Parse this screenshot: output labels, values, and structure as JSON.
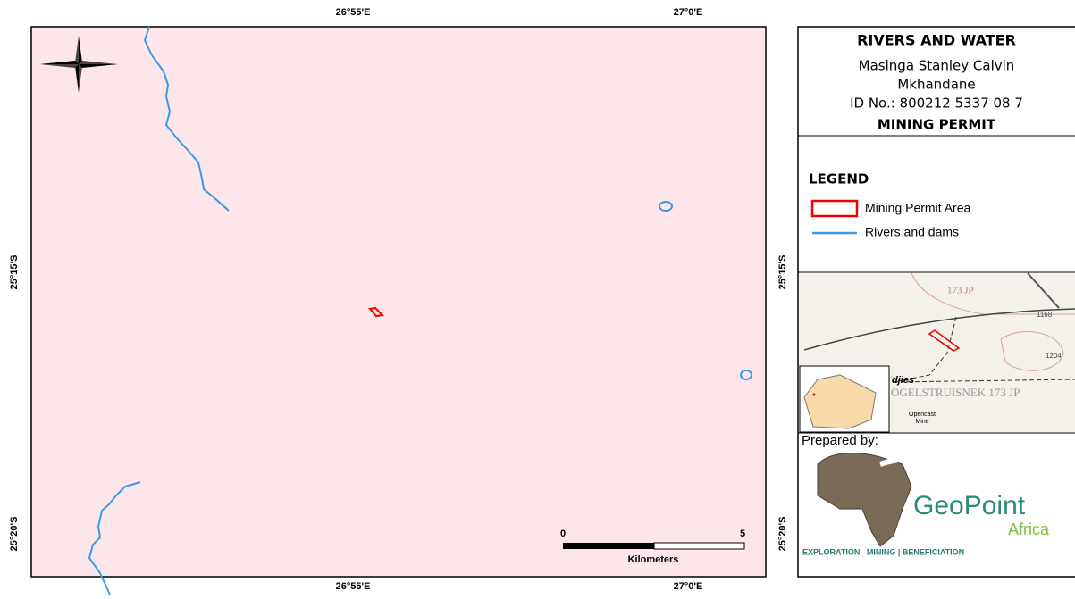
{
  "grid_labels": {
    "top": [
      "26°55'E",
      "27°0'E"
    ],
    "bottom": [
      "26°55'E",
      "27°0'E"
    ],
    "left": [
      "25°15'S",
      "25°20'S"
    ],
    "right": [
      "25°15'S",
      "25°20'S"
    ]
  },
  "title_block": {
    "title": "RIVERS AND WATER",
    "name_line1": "Masinga Stanley Calvin",
    "name_line2": "Mkhandane",
    "id": "ID No.: 800212 5337 08 7",
    "subtitle": "MINING PERMIT"
  },
  "legend": {
    "heading": "LEGEND",
    "items": [
      "Mining Permit Area",
      "Rivers and dams"
    ]
  },
  "inset": {
    "labels": [
      "173 JP",
      "1168",
      "1204",
      "djies",
      "OGELSTRUISNEK 173 JP",
      "Opencast",
      "Mine"
    ]
  },
  "prepared_by": {
    "heading": "Prepared by:",
    "brand": "GeoPoint",
    "brand_sub": "Africa",
    "tagline": "EXPLORATION   MINING | BENEFICIATION"
  },
  "scale_bar": {
    "start": 0,
    "end": 5,
    "unit": "Kilometers"
  }
}
